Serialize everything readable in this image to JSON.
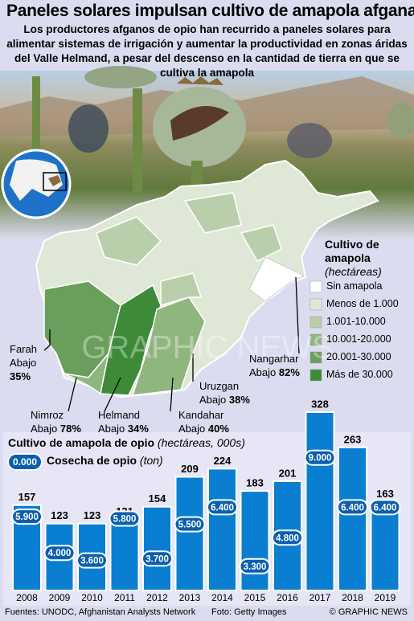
{
  "title": "Paneles solares impulsan cultivo de amapola afgana",
  "subtitle": "Los productores afganos de opio han recurrido a paneles solares para alimentar sistemas de irrigación y aumentar la productividad en zonas áridas del Valle Helmand, a pesar del descenso en la cantidad de tierra en que se cultiva la amapola",
  "map": {
    "legend_title": "Cultivo de amapola",
    "legend_unit": "(hectáreas)",
    "legend": [
      {
        "label": "Sin amapola",
        "color": "#ffffff"
      },
      {
        "label": "Menos de 1.000",
        "color": "#dfe8d6"
      },
      {
        "label": "1.001-10.000",
        "color": "#b9cfab"
      },
      {
        "label": "10.001-20.000",
        "color": "#90b680"
      },
      {
        "label": "20.001-30.000",
        "color": "#6a9f5b"
      },
      {
        "label": "Más de 30.000",
        "color": "#3d8a38"
      }
    ],
    "provinces": [
      {
        "name": "Farah",
        "label": "Abajo",
        "change": "35%"
      },
      {
        "name": "Nimroz",
        "label": "Abajo",
        "change": "78%"
      },
      {
        "name": "Helmand",
        "label": "Abajo",
        "change": "34%"
      },
      {
        "name": "Kandahar",
        "label": "Abajo",
        "change": "40%"
      },
      {
        "name": "Uruzgan",
        "label": "Abajo",
        "change": "38%"
      },
      {
        "name": "Nangarhar",
        "label": "Abajo",
        "change": "82%"
      }
    ]
  },
  "chart_data": {
    "type": "bar",
    "title": "Cultivo de amapola de opio",
    "unit": "(hectáreas, 000s)",
    "categories": [
      "2008",
      "2009",
      "2010",
      "2011",
      "2012",
      "2013",
      "2014",
      "2015",
      "2016",
      "2017",
      "2018",
      "2019"
    ],
    "values": [
      157,
      123,
      123,
      131,
      154,
      209,
      224,
      183,
      201,
      328,
      263,
      163
    ],
    "color": "#0a7fd2",
    "harvest": {
      "name": "Cosecha de opio",
      "unit": "(ton)",
      "legend_sample": "0.000",
      "color": "#0b5fb0",
      "values": [
        5900,
        4000,
        3600,
        5800,
        3700,
        5500,
        6400,
        3300,
        4800,
        9000,
        6400,
        6400
      ],
      "value_labels": [
        "5.900",
        "4.000",
        "3.600",
        "5.800",
        "3.700",
        "5.500",
        "6.400",
        "3.300",
        "4.800",
        "9.000",
        "6.400",
        "6.400"
      ]
    }
  },
  "footer": {
    "sources": "Fuentes: UNODC, Afghanistan Analysts Network",
    "photo": "Foto: Getty Images",
    "credit": "© GRAPHIC NEWS"
  }
}
